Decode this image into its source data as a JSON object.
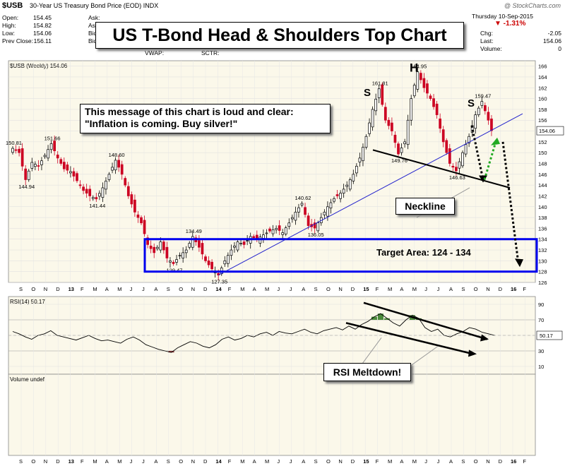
{
  "header": {
    "symbol": "$USB",
    "description": "30-Year US Treasury Bond Price (EOD)  INDX",
    "brand": "@ StockCharts.com",
    "date": "Thursday  10-Sep-2015",
    "change_pct": "▼ -1.31%",
    "quote_left": [
      {
        "label": "Open:",
        "value": "154.45"
      },
      {
        "label": "High:",
        "value": "154.82"
      },
      {
        "label": "Low:",
        "value": "154.06"
      },
      {
        "label": "Prev Close:",
        "value": "156.11"
      }
    ],
    "quote_mid": [
      "Ask:",
      "Ask Size:",
      "Bid:",
      "Bid Size:"
    ],
    "quote_bottom": [
      "VWAP:",
      "SCTR:"
    ],
    "quote_right": [
      {
        "label": "Chg:",
        "value": "-2.05"
      },
      {
        "label": "Last:",
        "value": "154.06"
      },
      {
        "label": "Volume:",
        "value": "0"
      }
    ]
  },
  "annotations": {
    "title": "US T-Bond Head & Shoulders Top Chart",
    "message_line1": "This message of this chart is loud and clear:",
    "message_line2": "\"Inflation is coming.  Buy silver!\"",
    "neckline": "Neckline",
    "target": "Target Area: 124 - 134",
    "rsi_meltdown": "RSI Meltdown!",
    "pattern_labels": [
      "S",
      "H",
      "S"
    ]
  },
  "colors": {
    "up": "#000000",
    "down": "#cc0022",
    "trendline": "#2222cc",
    "target_box": "#0000ee",
    "rsi_fill": "#4a8a3a",
    "rsi_fill_low": "#8b3a3a",
    "green_arrow": "#22aa22",
    "panel_bg": "#fbf8ea"
  },
  "chart_data": [
    {
      "type": "candlestick",
      "label": "$USB (Weekly) 154.06",
      "ylim": [
        126,
        167
      ],
      "yticks": [
        126,
        128,
        130,
        132,
        134,
        136,
        138,
        140,
        142,
        144,
        146,
        148,
        150,
        152,
        154,
        156,
        158,
        160,
        162,
        164,
        166
      ],
      "last_value_label": "154.06",
      "x_labels": [
        "S",
        "O",
        "N",
        "D",
        "13",
        "F",
        "M",
        "A",
        "M",
        "J",
        "J",
        "A",
        "S",
        "O",
        "N",
        "D",
        "14",
        "F",
        "M",
        "A",
        "M",
        "J",
        "J",
        "A",
        "S",
        "O",
        "N",
        "D",
        "15",
        "F",
        "M",
        "A",
        "M",
        "J",
        "J",
        "A",
        "S",
        "O",
        "N",
        "D",
        "16",
        "F"
      ],
      "price_path": [
        [
          0,
          150.8
        ],
        [
          2,
          150.0
        ],
        [
          4,
          145.0
        ],
        [
          6,
          148.2
        ],
        [
          8,
          147.5
        ],
        [
          10,
          149.5
        ],
        [
          12,
          151.66
        ],
        [
          14,
          149.0
        ],
        [
          16,
          147.0
        ],
        [
          18,
          146.5
        ],
        [
          20,
          144.8
        ],
        [
          22,
          143.0
        ],
        [
          24,
          142.0
        ],
        [
          26,
          141.44
        ],
        [
          28,
          143.5
        ],
        [
          30,
          146.0
        ],
        [
          32,
          148.6
        ],
        [
          34,
          146.0
        ],
        [
          36,
          142.0
        ],
        [
          38,
          139.0
        ],
        [
          40,
          137.0
        ],
        [
          42,
          133.0
        ],
        [
          44,
          131.5
        ],
        [
          46,
          133.5
        ],
        [
          48,
          130.5
        ],
        [
          50,
          129.47
        ],
        [
          52,
          131.0
        ],
        [
          54,
          132.0
        ],
        [
          56,
          134.49
        ],
        [
          58,
          132.5
        ],
        [
          60,
          130.0
        ],
        [
          62,
          128.5
        ],
        [
          64,
          127.35
        ],
        [
          66,
          130.0
        ],
        [
          68,
          132.0
        ],
        [
          70,
          133.5
        ],
        [
          72,
          133.0
        ],
        [
          74,
          134.5
        ],
        [
          76,
          134.0
        ],
        [
          78,
          134.8
        ],
        [
          80,
          135.5
        ],
        [
          82,
          136.0
        ],
        [
          84,
          135.2
        ],
        [
          86,
          137.0
        ],
        [
          88,
          139.0
        ],
        [
          90,
          140.62
        ],
        [
          92,
          136.5
        ],
        [
          94,
          136.05
        ],
        [
          96,
          138.0
        ],
        [
          98,
          140.0
        ],
        [
          100,
          141.5
        ],
        [
          102,
          142.5
        ],
        [
          104,
          144.0
        ],
        [
          106,
          146.0
        ],
        [
          108,
          149.0
        ],
        [
          110,
          153.0
        ],
        [
          112,
          158.0
        ],
        [
          114,
          161.81
        ],
        [
          116,
          156.0
        ],
        [
          118,
          154.0
        ],
        [
          120,
          149.76
        ],
        [
          122,
          152.0
        ],
        [
          124,
          160.0
        ],
        [
          126,
          164.95
        ],
        [
          128,
          162.0
        ],
        [
          130,
          160.0
        ],
        [
          132,
          157.0
        ],
        [
          134,
          152.0
        ],
        [
          136,
          148.0
        ],
        [
          138,
          146.63
        ],
        [
          140,
          150.0
        ],
        [
          142,
          153.0
        ],
        [
          144,
          157.0
        ],
        [
          146,
          159.47
        ],
        [
          148,
          156.0
        ],
        [
          149,
          154.06
        ]
      ],
      "labeled_points": [
        {
          "x": 0,
          "value": 150.81
        },
        {
          "x": 4,
          "value": 144.94
        },
        {
          "x": 12,
          "value": 151.66
        },
        {
          "x": 26,
          "value": 141.44
        },
        {
          "x": 32,
          "value": 148.6
        },
        {
          "x": 50,
          "value": 129.47
        },
        {
          "x": 56,
          "value": 134.49
        },
        {
          "x": 64,
          "value": 127.35
        },
        {
          "x": 90,
          "value": 140.62
        },
        {
          "x": 94,
          "value": 136.05
        },
        {
          "x": 114,
          "value": 161.81
        },
        {
          "x": 120,
          "value": 149.76
        },
        {
          "x": 126,
          "value": 164.95
        },
        {
          "x": 138,
          "value": 146.63
        },
        {
          "x": 146,
          "value": 159.47
        }
      ],
      "target_area": [
        124,
        134
      ]
    },
    {
      "type": "line",
      "label": "RSI(14) 50.17",
      "ylim": [
        0,
        100
      ],
      "yticks": [
        10,
        30,
        50,
        70,
        90
      ],
      "last_value_label": "50.17",
      "values": [
        55,
        52,
        48,
        45,
        50,
        52,
        56,
        50,
        48,
        46,
        44,
        47,
        50,
        46,
        43,
        44,
        42,
        40,
        45,
        48,
        44,
        38,
        35,
        32,
        30,
        28,
        34,
        38,
        42,
        40,
        36,
        34,
        38,
        45,
        48,
        44,
        46,
        50,
        48,
        52,
        54,
        50,
        55,
        53,
        52,
        55,
        58,
        54,
        52,
        56,
        58,
        60,
        57,
        62,
        58,
        64,
        68,
        74,
        78,
        72,
        66,
        62,
        70,
        76,
        72,
        60,
        55,
        58,
        50,
        48,
        52,
        55,
        60,
        58,
        54,
        52,
        50
      ]
    },
    {
      "type": "volume",
      "label": "Volume undef"
    }
  ]
}
